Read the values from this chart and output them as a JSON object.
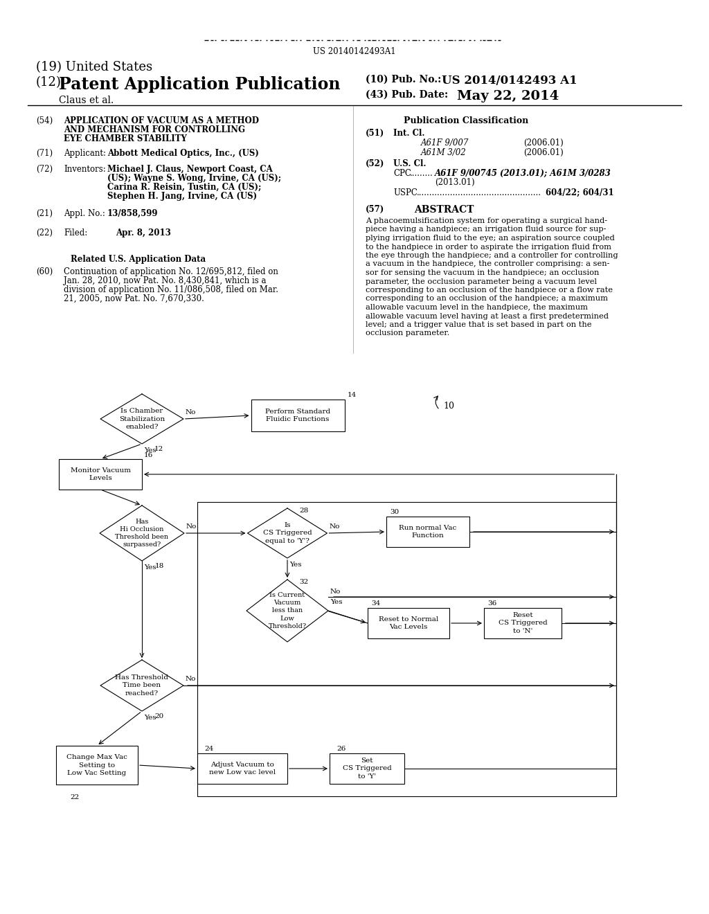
{
  "background_color": "#ffffff",
  "barcode_text": "US 20140142493A1",
  "header": {
    "country": "(19) United States",
    "type_num": "(12)",
    "type": "Patent Application Publication",
    "inventors_line": "Claus et al.",
    "pub_no_label": "(10) Pub. No.:",
    "pub_no": "US 2014/0142493 A1",
    "pub_date_label": "(43) Pub. Date:",
    "pub_date": "May 22, 2014"
  },
  "left_col": {
    "title_num": "(54)",
    "title_line1": "APPLICATION OF VACUUM AS A METHOD",
    "title_line2": "AND MECHANISM FOR CONTROLLING",
    "title_line3": "EYE CHAMBER STABILITY",
    "applicant_num": "(71)",
    "applicant_label": "Applicant:",
    "applicant": "Abbott Medical Optics, Inc., (US)",
    "inventors_num": "(72)",
    "inventors_label": "Inventors:",
    "inv_line1": "Michael J. Claus, Newport Coast, CA",
    "inv_line2": "(US); Wayne S. Wong, Irvine, CA (US);",
    "inv_line3": "Carina R. Reisin, Tustin, CA (US);",
    "inv_line4": "Stephen H. Jang, Irvine, CA (US)",
    "appl_num": "(21)",
    "appl_label": "Appl. No.:",
    "appl_no": "13/858,599",
    "filed_num": "(22)",
    "filed_label": "Filed:",
    "filed_date": "Apr. 8, 2013",
    "related_title": "Related U.S. Application Data",
    "related_num": "(60)",
    "related_line1": "Continuation of application No. 12/695,812, filed on",
    "related_line2": "Jan. 28, 2010, now Pat. No. 8,430,841, which is a",
    "related_line3": "division of application No. 11/086,508, filed on Mar.",
    "related_line4": "21, 2005, now Pat. No. 7,670,330."
  },
  "right_col": {
    "pub_class_title": "Publication Classification",
    "int_cl_num": "(51)",
    "int_cl_label": "Int. Cl.",
    "int_cl_1": "A61F 9/007",
    "int_cl_1_date": "(2006.01)",
    "int_cl_2": "A61M 3/02",
    "int_cl_2_date": "(2006.01)",
    "us_cl_num": "(52)",
    "us_cl_label": "U.S. Cl.",
    "cpc_label": "CPC",
    "cpc_dots": ".........",
    "cpc_codes": "A61F 9/00745 (2013.01); A61M 3/0283",
    "cpc_codes2": "(2013.01)",
    "uspc_label": "USPC",
    "uspc_dots": "................................................",
    "uspc_text": "604/22; 604/31",
    "abstract_num": "(57)",
    "abstract_title": "ABSTRACT",
    "abstract_lines": [
      "A phacoemulsification system for operating a surgical hand-",
      "piece having a handpiece; an irrigation fluid source for sup-",
      "plying irrigation fluid to the eye; an aspiration source coupled",
      "to the handpiece in order to aspirate the irrigation fluid from",
      "the eye through the handpiece; and a controller for controlling",
      "a vacuum in the handpiece, the controller comprising: a sen-",
      "sor for sensing the vacuum in the handpiece; an occlusion",
      "parameter, the occlusion parameter being a vacuum level",
      "corresponding to an occlusion of the handpiece or a flow rate",
      "corresponding to an occlusion of the handpiece; a maximum",
      "allowable vacuum level in the handpiece, the maximum",
      "allowable vacuum level having at least a first predetermined",
      "level; and a trigger value that is set based in part on the",
      "occlusion parameter."
    ]
  }
}
